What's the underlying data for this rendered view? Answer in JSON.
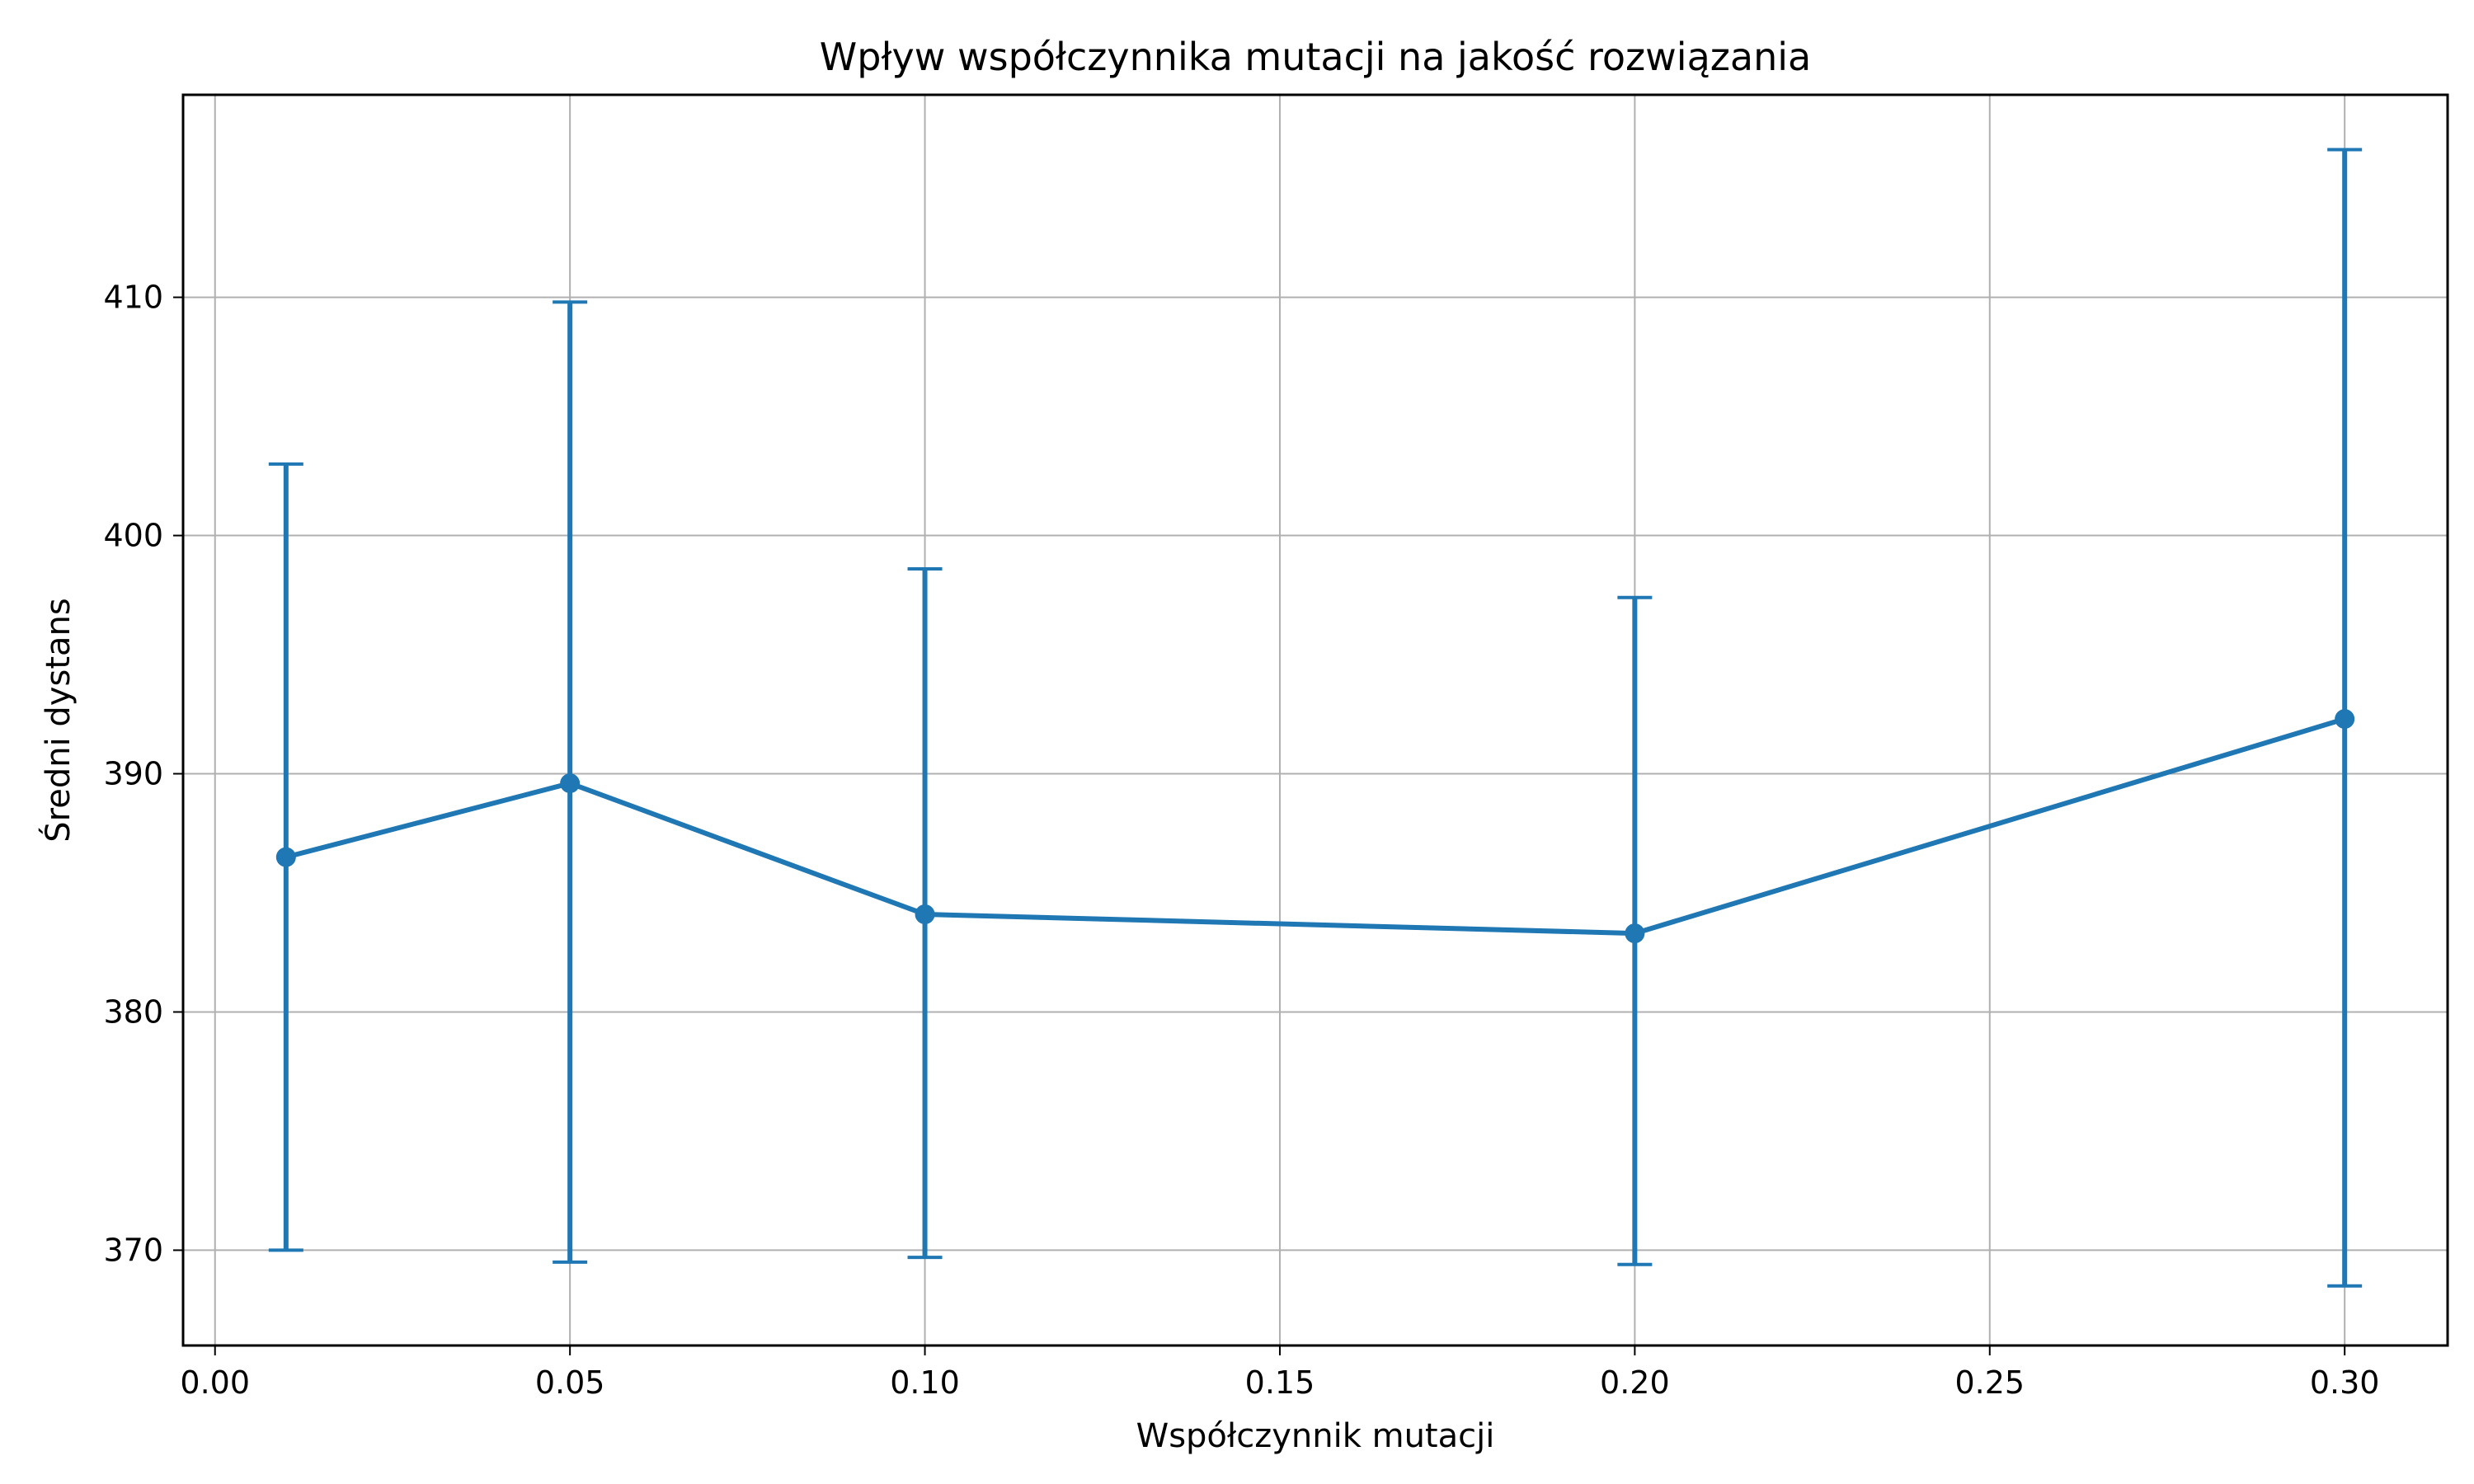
{
  "chart_data": {
    "type": "line",
    "title": "Wpływ współczynnika mutacji na jakość rozwiązania",
    "xlabel": "Współczynnik mutacji",
    "ylabel": "Średni dystans",
    "xlim": [
      -0.0045,
      0.3145
    ],
    "ylim": [
      366.0,
      418.5
    ],
    "x_ticks": [
      0.0,
      0.05,
      0.1,
      0.15,
      0.2,
      0.25,
      0.3
    ],
    "x_tick_labels": [
      "0.00",
      "0.05",
      "0.10",
      "0.15",
      "0.20",
      "0.25",
      "0.30"
    ],
    "y_ticks": [
      370,
      380,
      390,
      400,
      410
    ],
    "y_tick_labels": [
      "370",
      "380",
      "390",
      "400",
      "410"
    ],
    "grid": true,
    "series": [
      {
        "color": "#1f77b4",
        "x": [
          0.01,
          0.05,
          0.1,
          0.2,
          0.3
        ],
        "y": [
          386.5,
          389.6,
          384.1,
          383.3,
          392.3
        ],
        "error_lower": [
          370.0,
          369.5,
          369.7,
          369.4,
          368.5
        ],
        "error_upper": [
          403.0,
          409.8,
          398.6,
          397.4,
          416.2
        ]
      }
    ]
  }
}
